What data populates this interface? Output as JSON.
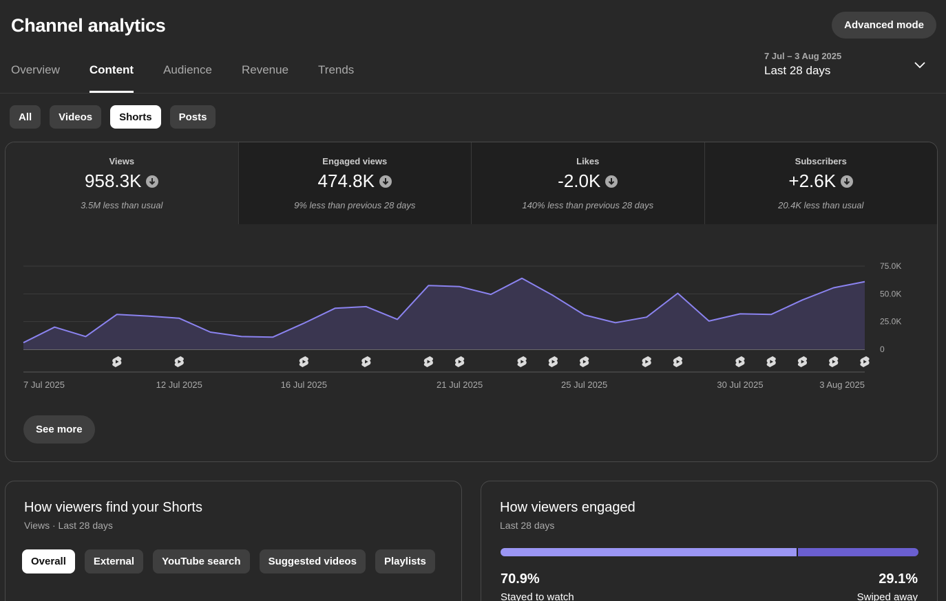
{
  "header": {
    "title": "Channel analytics",
    "advanced_label": "Advanced mode"
  },
  "tabs": [
    {
      "label": "Overview"
    },
    {
      "label": "Content",
      "active": true
    },
    {
      "label": "Audience"
    },
    {
      "label": "Revenue"
    },
    {
      "label": "Trends"
    }
  ],
  "date_range": {
    "sub": "7 Jul – 3 Aug 2025",
    "main": "Last 28 days",
    "icon": "chevron-down-icon"
  },
  "content_chips": [
    {
      "label": "All"
    },
    {
      "label": "Videos"
    },
    {
      "label": "Shorts",
      "active": true
    },
    {
      "label": "Posts"
    }
  ],
  "metrics": [
    {
      "label": "Views",
      "value": "958.3K",
      "note": "3.5M less than usual",
      "trend_icon": "arrow-down-circle-icon",
      "active": true
    },
    {
      "label": "Engaged views",
      "value": "474.8K",
      "note": "9% less than previous 28 days",
      "trend_icon": "arrow-down-circle-icon"
    },
    {
      "label": "Likes",
      "value": "-2.0K",
      "note": "140% less than previous 28 days",
      "trend_icon": "arrow-down-circle-icon"
    },
    {
      "label": "Subscribers",
      "value": "+2.6K",
      "note": "20.4K less than usual",
      "trend_icon": "arrow-down-circle-icon"
    }
  ],
  "chart_data": {
    "type": "area",
    "x": [
      "7 Jul 2025",
      "8 Jul 2025",
      "9 Jul 2025",
      "10 Jul 2025",
      "11 Jul 2025",
      "12 Jul 2025",
      "13 Jul 2025",
      "14 Jul 2025",
      "15 Jul 2025",
      "16 Jul 2025",
      "17 Jul 2025",
      "18 Jul 2025",
      "19 Jul 2025",
      "20 Jul 2025",
      "21 Jul 2025",
      "22 Jul 2025",
      "23 Jul 2025",
      "24 Jul 2025",
      "25 Jul 2025",
      "26 Jul 2025",
      "27 Jul 2025",
      "28 Jul 2025",
      "29 Jul 2025",
      "30 Jul 2025",
      "31 Jul 2025",
      "1 Aug 2025",
      "2 Aug 2025",
      "3 Aug 2025"
    ],
    "series": [
      {
        "values": [
          6000,
          20000,
          11500,
          31500,
          30000,
          28000,
          15500,
          11500,
          11000,
          23500,
          37000,
          38500,
          27000,
          57500,
          56500,
          49500,
          64000,
          48500,
          31000,
          24000,
          29000,
          50500,
          25500,
          32000,
          31500,
          44500,
          55500,
          61000
        ],
        "color": "#8b83f0"
      }
    ],
    "xtick_labels": [
      {
        "label": "7 Jul 2025",
        "index": 0
      },
      {
        "label": "12 Jul 2025",
        "index": 5
      },
      {
        "label": "16 Jul 2025",
        "index": 9
      },
      {
        "label": "21 Jul 2025",
        "index": 14
      },
      {
        "label": "25 Jul 2025",
        "index": 18
      },
      {
        "label": "30 Jul 2025",
        "index": 23
      },
      {
        "label": "3 Aug 2025",
        "index": 27
      }
    ],
    "yticks": [
      0,
      25000,
      50000,
      75000
    ],
    "ytick_labels": [
      "0",
      "25.0K",
      "50.0K",
      "75.0K"
    ],
    "ylim": [
      0,
      75000
    ],
    "grid": true,
    "upload_marker_indices": [
      3,
      5,
      9,
      11,
      13,
      14,
      16,
      17,
      18,
      20,
      21,
      23,
      24,
      25,
      26,
      27
    ],
    "upload_marker_icon": "shorts-icon",
    "fill_color": "#3a3650",
    "grid_color": "#3d3d3d"
  },
  "see_more_label": "See more",
  "find_card": {
    "title": "How viewers find your Shorts",
    "subtitle": "Views · Last 28 days",
    "chips": [
      {
        "label": "Overall",
        "active": true
      },
      {
        "label": "External"
      },
      {
        "label": "YouTube search"
      },
      {
        "label": "Suggested videos"
      },
      {
        "label": "Playlists"
      }
    ]
  },
  "engaged_card": {
    "title": "How viewers engaged",
    "subtitle": "Last 28 days",
    "stayed_pct": 70.9,
    "stayed_label_value": "70.9%",
    "stayed_label": "Stayed to watch",
    "swiped_label_value": "29.1%",
    "swiped_label": "Swiped away",
    "stayed_color": "#9b96f4",
    "swiped_color": "#6a5fd0"
  }
}
